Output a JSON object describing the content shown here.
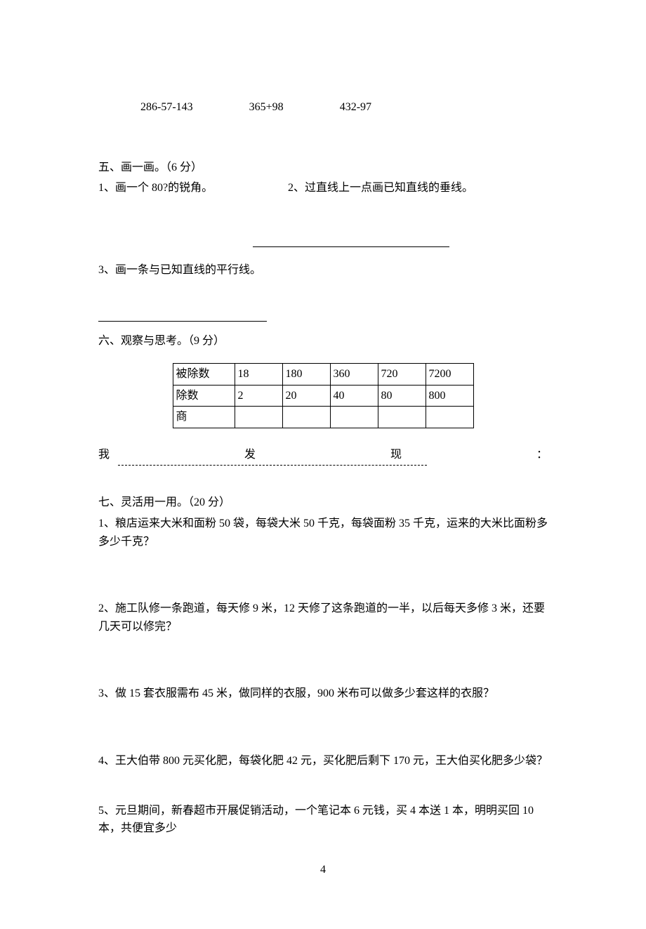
{
  "calc": {
    "expr1": "286-57-143",
    "expr2": "365+98",
    "expr3": "432-97"
  },
  "section5": {
    "title": "五、画一画。（6 分）",
    "item1": "1、画一个 80?的锐角。",
    "item2": "2、过直线上一点画已知直线的垂线。",
    "item3": "3、画一条与已知直线的平行线。"
  },
  "section6": {
    "title": "六、观察与思考。（9 分）",
    "table": {
      "row1_label": "被除数",
      "row2_label": "除数",
      "row3_label": "商",
      "dividends": [
        "18",
        "180",
        "360",
        "720",
        "7200"
      ],
      "divisors": [
        "2",
        "20",
        "40",
        "80",
        "800"
      ],
      "quotients": [
        "",
        "",
        "",
        "",
        ""
      ]
    },
    "discovery_prefix": "我",
    "discovery_mid": "发",
    "discovery_suffix": "现",
    "discovery_colon": "："
  },
  "section7": {
    "title": "七、灵活用一用。（20 分）",
    "p1": "1、粮店运来大米和面粉 50 袋，每袋大米 50 千克，每袋面粉 35 千克，运来的大米比面粉多多少千克？",
    "p2": "2、施工队修一条跑道，每天修 9 米，12 天修了这条跑道的一半，以后每天多修 3 米，还要几天可以修完？",
    "p3": "3、做 15 套衣服需布 45 米，做同样的衣服，900 米布可以做多少套这样的衣服？",
    "p4": "4、王大伯带 800 元买化肥，每袋化肥 42 元，买化肥后剩下 170 元，王大伯买化肥多少袋？",
    "p5": "5、元旦期间，新春超市开展促销活动，一个笔记本 6 元钱，买 4 本送 1 本，明明买回 10本，共便宜多少"
  },
  "page_number": "4"
}
